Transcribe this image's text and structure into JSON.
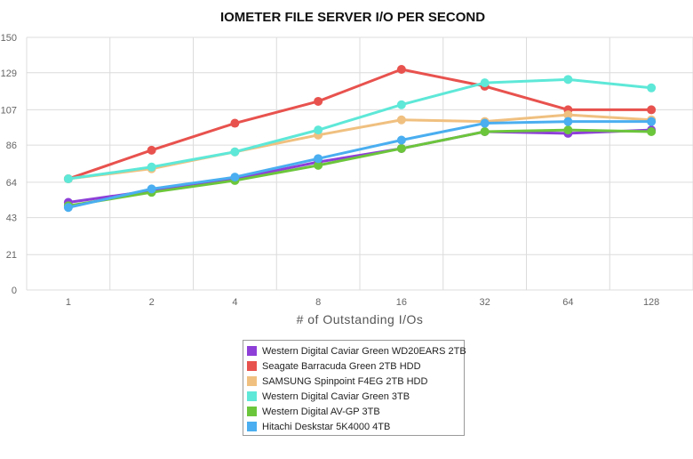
{
  "chart_data": {
    "type": "line",
    "title": "IOMETER FILE SERVER I/O PER SECOND",
    "xlabel": "# of Outstanding I/Os",
    "ylabel": "",
    "categories": [
      "1",
      "2",
      "4",
      "8",
      "16",
      "32",
      "64",
      "128"
    ],
    "ylim": [
      0,
      150
    ],
    "yticks": [
      0,
      21,
      43,
      64,
      86,
      107,
      129,
      150
    ],
    "grid": true,
    "legend_position": "bottom",
    "series": [
      {
        "name": "Western Digital Caviar Green WD20EARS 2TB",
        "color": "#8e3fd8",
        "values": [
          52,
          59,
          66,
          76,
          84,
          94,
          93,
          95
        ]
      },
      {
        "name": "Seagate Barracuda Green 2TB HDD",
        "color": "#e8524e",
        "values": [
          66,
          83,
          99,
          112,
          131,
          121,
          107,
          107
        ]
      },
      {
        "name": "SAMSUNG Spinpoint F4EG 2TB HDD",
        "color": "#f0c080",
        "values": [
          66,
          72,
          82,
          92,
          101,
          100,
          104,
          101
        ]
      },
      {
        "name": "Western Digital Caviar Green 3TB",
        "color": "#5ee8d8",
        "values": [
          66,
          73,
          82,
          95,
          110,
          123,
          125,
          120
        ]
      },
      {
        "name": "Western Digital AV-GP 3TB",
        "color": "#6cc63c",
        "values": [
          50,
          58,
          65,
          74,
          84,
          94,
          95,
          94
        ]
      },
      {
        "name": "Hitachi Deskstar 5K4000 4TB",
        "color": "#4aaef0",
        "values": [
          49,
          60,
          67,
          78,
          89,
          99,
          100,
          100
        ]
      }
    ]
  }
}
